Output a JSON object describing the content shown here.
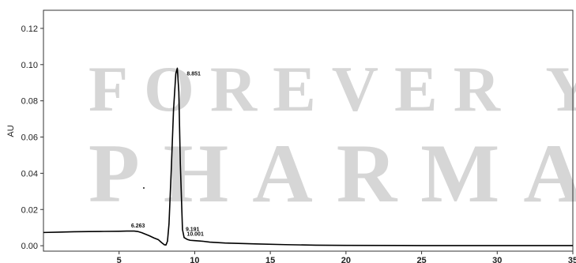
{
  "watermark": {
    "line1": "FOREVER YO",
    "line2": "PHARMA"
  },
  "chart_data": {
    "type": "line",
    "title": "",
    "xlabel": "",
    "ylabel": "AU",
    "xlim": [
      0,
      35
    ],
    "ylim": [
      -0.003,
      0.13
    ],
    "x_ticks": [
      5,
      10,
      15,
      20,
      25,
      30,
      35
    ],
    "y_ticks": [
      0.0,
      0.02,
      0.04,
      0.06,
      0.08,
      0.1,
      0.12
    ],
    "y_tick_labels": [
      "0.00",
      "0.02",
      "0.04",
      "0.06",
      "0.08",
      "0.10",
      "0.12"
    ],
    "grid": false,
    "series": [
      {
        "x": [
          0,
          1,
          2,
          3,
          4,
          5,
          5.5,
          6,
          6.263,
          6.5,
          7,
          7.3,
          7.6,
          7.8,
          8.0,
          8.1,
          8.2,
          8.3,
          8.45,
          8.6,
          8.75,
          8.851,
          8.95,
          9.05,
          9.191,
          9.3,
          9.5,
          9.7,
          10.001,
          10.5,
          11,
          12,
          14,
          16,
          18,
          20,
          25,
          30,
          35
        ],
        "y": [
          0.0073,
          0.0075,
          0.0077,
          0.0078,
          0.0079,
          0.008,
          0.0081,
          0.0081,
          0.0078,
          0.0072,
          0.0055,
          0.0043,
          0.0033,
          0.0018,
          0.0005,
          0.0004,
          0.0025,
          0.012,
          0.042,
          0.075,
          0.095,
          0.098,
          0.085,
          0.045,
          0.009,
          0.0045,
          0.0035,
          0.003,
          0.0028,
          0.0025,
          0.002,
          0.0015,
          0.001,
          0.0006,
          0.0003,
          0.0002,
          0.0001,
          0.0001,
          0.0001
        ]
      }
    ],
    "peaks": [
      {
        "label": "6.263",
        "x": 6.263,
        "y": 0.0078
      },
      {
        "label": "8.851",
        "x": 8.851,
        "y": 0.098
      },
      {
        "label": "9.191",
        "x": 9.191,
        "y": 0.009
      },
      {
        "label": "10.001",
        "x": 10.001,
        "y": 0.0028
      }
    ]
  }
}
